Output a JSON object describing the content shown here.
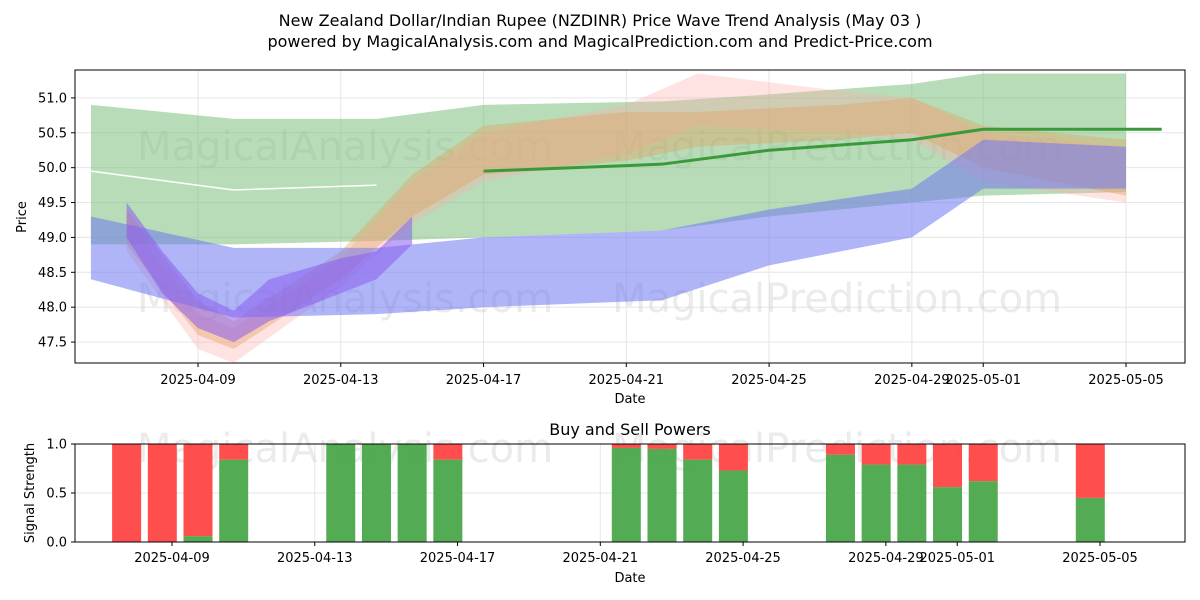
{
  "title_line1": "New Zealand Dollar/Indian Rupee (NZDINR) Price Wave Trend Analysis (May 03 )",
  "title_line2": "powered by MagicalAnalysis.com and MagicalPrediction.com and Predict-Price.com",
  "watermarks": [
    "MagicalAnalysis.com",
    "MagicalPrediction.com"
  ],
  "colors": {
    "buy": "#4aa84a",
    "sell": "#ff4444",
    "green_band": "#7cc07c",
    "blue_band": "#6f78f0",
    "purple_band": "#8a5cf0",
    "orange_band": "#e0a060",
    "pink_band": "#ffb0b0",
    "trend_line": "#3a9a3a",
    "white_line": "#ffffff"
  },
  "chart_data": [
    {
      "type": "area",
      "name": "price-wave-chart",
      "xlabel": "Date",
      "ylabel": "Price",
      "x_ticks": [
        "2025-04-09",
        "2025-04-13",
        "2025-04-17",
        "2025-04-21",
        "2025-04-25",
        "2025-04-29",
        "2025-05-01",
        "2025-05-05"
      ],
      "y_ticks": [
        "47.5",
        "48.0",
        "48.5",
        "49.0",
        "49.5",
        "50.0",
        "50.5",
        "51.0"
      ],
      "ylim": [
        47.2,
        51.4
      ],
      "xlim": [
        "2025-04-06",
        "2025-05-06"
      ],
      "grid": true,
      "bands": [
        {
          "color": "green",
          "dates": [
            "2025-04-06",
            "2025-04-10",
            "2025-04-14",
            "2025-04-17",
            "2025-04-22",
            "2025-04-25",
            "2025-04-29",
            "2025-05-01",
            "2025-05-05"
          ],
          "upper": [
            50.9,
            50.7,
            50.7,
            50.9,
            50.95,
            51.05,
            51.2,
            51.35,
            51.35
          ],
          "lower": [
            48.9,
            48.9,
            48.95,
            49.0,
            49.1,
            49.3,
            49.5,
            49.6,
            49.65
          ]
        },
        {
          "color": "blue",
          "dates": [
            "2025-04-06",
            "2025-04-10",
            "2025-04-14",
            "2025-04-17",
            "2025-04-22",
            "2025-04-25",
            "2025-04-29",
            "2025-05-01",
            "2025-05-05"
          ],
          "upper": [
            49.3,
            48.85,
            48.85,
            49.0,
            49.1,
            49.4,
            49.7,
            50.4,
            50.3
          ],
          "lower": [
            48.4,
            47.85,
            47.9,
            48.0,
            48.1,
            48.6,
            49.0,
            49.7,
            49.7
          ]
        },
        {
          "color": "purple",
          "dates": [
            "2025-04-07",
            "2025-04-08",
            "2025-04-09",
            "2025-04-10",
            "2025-04-11",
            "2025-04-13",
            "2025-04-14",
            "2025-04-15"
          ],
          "upper": [
            49.5,
            48.8,
            48.2,
            47.95,
            48.4,
            48.7,
            48.8,
            49.3
          ],
          "lower": [
            49.0,
            48.2,
            47.7,
            47.5,
            47.8,
            48.2,
            48.4,
            48.9
          ]
        },
        {
          "color": "orange",
          "dates": [
            "2025-04-07",
            "2025-04-09",
            "2025-04-10",
            "2025-04-13",
            "2025-04-15",
            "2025-04-17",
            "2025-04-21",
            "2025-04-23",
            "2025-04-27",
            "2025-04-29",
            "2025-05-01",
            "2025-05-05"
          ],
          "upper": [
            49.4,
            48.1,
            47.8,
            48.8,
            49.9,
            50.6,
            50.8,
            50.8,
            50.9,
            51.0,
            50.6,
            50.4
          ],
          "lower": [
            48.9,
            47.6,
            47.4,
            48.4,
            49.3,
            49.9,
            50.1,
            50.3,
            50.4,
            50.5,
            50.0,
            49.6
          ]
        },
        {
          "color": "pink",
          "dates": [
            "2025-04-07",
            "2025-04-09",
            "2025-04-10",
            "2025-04-13",
            "2025-04-15",
            "2025-04-17",
            "2025-04-21",
            "2025-04-23",
            "2025-04-27",
            "2025-04-29",
            "2025-05-01",
            "2025-05-05"
          ],
          "upper": [
            49.3,
            47.9,
            47.7,
            48.7,
            49.8,
            50.5,
            50.9,
            51.35,
            51.1,
            51.0,
            50.5,
            50.3
          ],
          "lower": [
            48.8,
            47.4,
            47.2,
            48.3,
            49.2,
            49.8,
            50.2,
            50.6,
            50.5,
            50.4,
            49.8,
            49.5
          ]
        }
      ],
      "lines": [
        {
          "color": "trend",
          "dates": [
            "2025-04-17",
            "2025-04-22",
            "2025-04-25",
            "2025-04-29",
            "2025-05-01",
            "2025-05-06"
          ],
          "values": [
            49.95,
            50.05,
            50.25,
            50.4,
            50.55,
            50.55
          ]
        },
        {
          "color": "white",
          "dates": [
            "2025-04-06",
            "2025-04-10",
            "2025-04-14"
          ],
          "values": [
            49.95,
            49.68,
            49.75
          ]
        }
      ]
    },
    {
      "type": "bar",
      "name": "buy-sell-powers",
      "title": "Buy and Sell Powers",
      "xlabel": "Date",
      "ylabel": "Signal Strength",
      "ylim": [
        0,
        1
      ],
      "y_ticks": [
        "0.0",
        "0.5",
        "1.0"
      ],
      "x_ticks": [
        "2025-04-09",
        "2025-04-13",
        "2025-04-17",
        "2025-04-21",
        "2025-04-25",
        "2025-04-29",
        "2025-05-01",
        "2025-05-05"
      ],
      "grid": true,
      "bars": [
        {
          "date": "2025-04-07",
          "buy": 0.0
        },
        {
          "date": "2025-04-08",
          "buy": 0.0
        },
        {
          "date": "2025-04-09",
          "buy": 0.06
        },
        {
          "date": "2025-04-10",
          "buy": 0.84
        },
        {
          "date": "2025-04-13",
          "buy": 1.0
        },
        {
          "date": "2025-04-14",
          "buy": 1.0
        },
        {
          "date": "2025-04-15",
          "buy": 1.0
        },
        {
          "date": "2025-04-16",
          "buy": 0.84
        },
        {
          "date": "2025-04-21",
          "buy": 0.96
        },
        {
          "date": "2025-04-22",
          "buy": 0.95
        },
        {
          "date": "2025-04-23",
          "buy": 0.84
        },
        {
          "date": "2025-04-24",
          "buy": 0.73
        },
        {
          "date": "2025-04-27",
          "buy": 0.89
        },
        {
          "date": "2025-04-28",
          "buy": 0.79
        },
        {
          "date": "2025-04-29",
          "buy": 0.79
        },
        {
          "date": "2025-04-30",
          "buy": 0.56
        },
        {
          "date": "2025-05-01",
          "buy": 0.62
        },
        {
          "date": "2025-05-04",
          "buy": 0.45
        }
      ]
    }
  ]
}
